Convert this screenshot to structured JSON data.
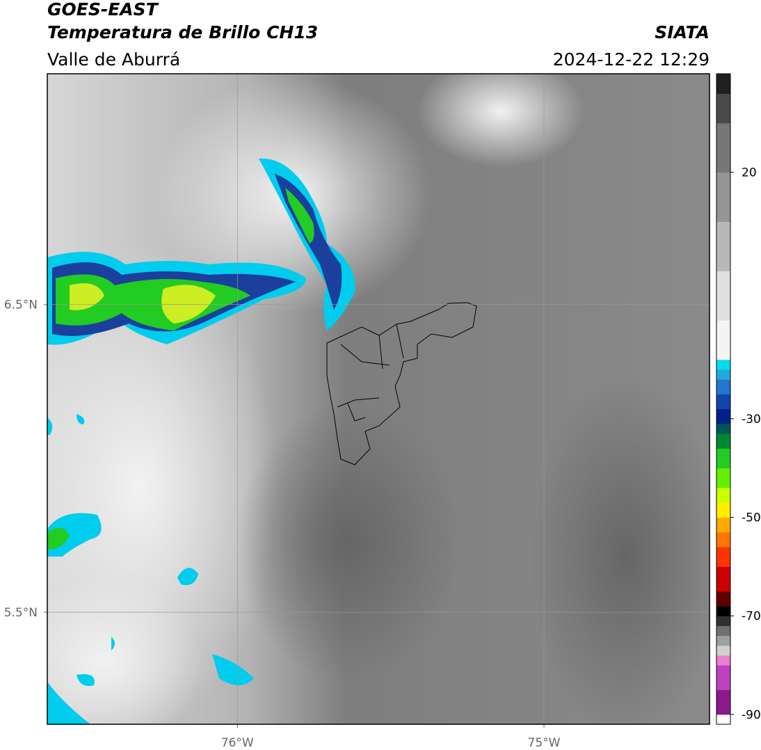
{
  "header": {
    "title": "GOES-EAST",
    "subtitle": "Temperatura de Brillo CH13",
    "region": "Valle de Aburrá",
    "source": "SIATA",
    "datetime": "2024-12-22 12:29"
  },
  "map": {
    "xlim": [
      -76.62,
      -74.46
    ],
    "ylim": [
      5.136,
      7.25
    ],
    "xticks": [
      {
        "value": -76,
        "label": "76°W"
      },
      {
        "value": -75,
        "label": "75°W"
      }
    ],
    "yticks": [
      {
        "value": 6.5,
        "label": "6.5°N"
      },
      {
        "value": 5.5,
        "label": "5.5°N"
      }
    ],
    "grid": true
  },
  "colorbar": {
    "lim": [
      -92,
      40
    ],
    "ticks": [
      20,
      -30,
      -50,
      -70,
      -90
    ],
    "stops": [
      {
        "value": -92,
        "color": "#ffffff"
      },
      {
        "value": -90,
        "color": "#8b1a8b"
      },
      {
        "value": -85,
        "color": "#c040c0"
      },
      {
        "value": -80,
        "color": "#e87fd0"
      },
      {
        "value": -78,
        "color": "#d0d0d0"
      },
      {
        "value": -76,
        "color": "#a0a0a0"
      },
      {
        "value": -74,
        "color": "#707070"
      },
      {
        "value": -72,
        "color": "#303030"
      },
      {
        "value": -70,
        "color": "#000000"
      },
      {
        "value": -68,
        "color": "#600000"
      },
      {
        "value": -65,
        "color": "#cc0000"
      },
      {
        "value": -60,
        "color": "#ff3300"
      },
      {
        "value": -56,
        "color": "#ff7700"
      },
      {
        "value": -53,
        "color": "#ffaa00"
      },
      {
        "value": -50,
        "color": "#ffee00"
      },
      {
        "value": -47,
        "color": "#ccff00"
      },
      {
        "value": -44,
        "color": "#66ee00"
      },
      {
        "value": -40,
        "color": "#22cc22"
      },
      {
        "value": -36,
        "color": "#008833"
      },
      {
        "value": -33,
        "color": "#005555"
      },
      {
        "value": -31,
        "color": "#002288"
      },
      {
        "value": -28,
        "color": "#1144aa"
      },
      {
        "value": -25,
        "color": "#2277cc"
      },
      {
        "value": -22,
        "color": "#22aadd"
      },
      {
        "value": -20,
        "color": "#00ddee"
      },
      {
        "value": -18,
        "color": "#f4f4f4"
      },
      {
        "value": -10,
        "color": "#e0e0e0"
      },
      {
        "value": 0,
        "color": "#b8b8b8"
      },
      {
        "value": 10,
        "color": "#959595"
      },
      {
        "value": 20,
        "color": "#777777"
      },
      {
        "value": 30,
        "color": "#4a4a4a"
      },
      {
        "value": 36,
        "color": "#202020"
      }
    ]
  }
}
